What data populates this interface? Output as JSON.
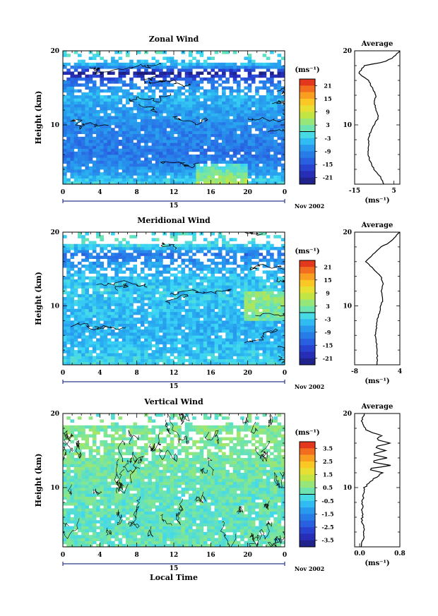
{
  "chart_data": [
    {
      "type": "heatmap",
      "title": "Zonal Wind",
      "xlabel": "",
      "ylabel": "Height (km)",
      "x_ticks": [
        "0",
        "4",
        "8",
        "12",
        "16",
        "20",
        "0"
      ],
      "x_range": [
        0,
        24
      ],
      "y_ticks": [
        "20",
        "10"
      ],
      "y_range": [
        2,
        20
      ],
      "date_label": "15",
      "month_label": "Nov 2002",
      "colorbar": {
        "unit": "(ms⁻¹)",
        "tick_labels": [
          "21",
          "15",
          "9",
          "3",
          "-3",
          "-9",
          "-15",
          "-21"
        ],
        "tick_values": [
          21,
          15,
          9,
          3,
          -3,
          -9,
          -15,
          -21
        ],
        "range": [
          -24,
          24
        ]
      },
      "field_profile": [
        {
          "h": 2,
          "v": -2
        },
        {
          "h": 4,
          "v": -8
        },
        {
          "h": 6,
          "v": -11
        },
        {
          "h": 8,
          "v": -10
        },
        {
          "h": 10,
          "v": -9
        },
        {
          "h": 12,
          "v": -7
        },
        {
          "h": 14,
          "v": -5
        },
        {
          "h": 16,
          "v": -12
        },
        {
          "h": 17,
          "v": -22
        },
        {
          "h": 18,
          "v": -6
        },
        {
          "h": 19,
          "v": -2
        },
        {
          "h": 20,
          "v": -1
        }
      ],
      "average": {
        "title": "Average",
        "xlabel": "(ms⁻¹)",
        "x_ticks": [
          "-15",
          "5"
        ],
        "x_range": [
          -15,
          8
        ],
        "y_ticks": [
          "20",
          "10"
        ],
        "profile": [
          {
            "h": 2,
            "v": 0
          },
          {
            "h": 3,
            "v": -2
          },
          {
            "h": 4,
            "v": -5
          },
          {
            "h": 5,
            "v": -7
          },
          {
            "h": 6,
            "v": -8
          },
          {
            "h": 7,
            "v": -8
          },
          {
            "h": 8,
            "v": -8
          },
          {
            "h": 9,
            "v": -7
          },
          {
            "h": 10,
            "v": -5
          },
          {
            "h": 11,
            "v": -3
          },
          {
            "h": 12,
            "v": -4
          },
          {
            "h": 13,
            "v": -5
          },
          {
            "h": 14,
            "v": -4
          },
          {
            "h": 15,
            "v": -6
          },
          {
            "h": 16,
            "v": -8
          },
          {
            "h": 17,
            "v": -13
          },
          {
            "h": 18,
            "v": -10
          },
          {
            "h": 18.5,
            "v": 0
          },
          {
            "h": 19,
            "v": 4
          },
          {
            "h": 19.5,
            "v": 6
          },
          {
            "h": 20,
            "v": 8
          }
        ]
      }
    },
    {
      "type": "heatmap",
      "title": "Meridional Wind",
      "xlabel": "",
      "ylabel": "Height (km)",
      "x_ticks": [
        "0",
        "4",
        "8",
        "12",
        "16",
        "20",
        "0"
      ],
      "x_range": [
        0,
        24
      ],
      "y_ticks": [
        "20",
        "10"
      ],
      "y_range": [
        2,
        20
      ],
      "date_label": "15",
      "month_label": "Nov 2002",
      "colorbar": {
        "unit": "(ms⁻¹)",
        "tick_labels": [
          "21",
          "15",
          "9",
          "3",
          "-3",
          "-9",
          "-15",
          "-21"
        ],
        "tick_values": [
          21,
          15,
          9,
          3,
          -3,
          -9,
          -15,
          -21
        ],
        "range": [
          -24,
          24
        ]
      },
      "field_profile": [
        {
          "h": 2,
          "v": -2
        },
        {
          "h": 4,
          "v": -4
        },
        {
          "h": 6,
          "v": -5
        },
        {
          "h": 8,
          "v": -5
        },
        {
          "h": 10,
          "v": -4
        },
        {
          "h": 12,
          "v": -3
        },
        {
          "h": 14,
          "v": -4
        },
        {
          "h": 16,
          "v": -8
        },
        {
          "h": 17,
          "v": -11
        },
        {
          "h": 18,
          "v": -3
        },
        {
          "h": 19,
          "v": -1
        },
        {
          "h": 20,
          "v": -1
        }
      ],
      "average": {
        "title": "Average",
        "xlabel": "(ms⁻¹)",
        "x_ticks": [
          "-8",
          "4"
        ],
        "x_range": [
          -8,
          4
        ],
        "y_ticks": [
          "20",
          "10"
        ],
        "profile": [
          {
            "h": 2,
            "v": -2
          },
          {
            "h": 4,
            "v": -2
          },
          {
            "h": 6,
            "v": -2.5
          },
          {
            "h": 8,
            "v": -2
          },
          {
            "h": 9,
            "v": -1.5
          },
          {
            "h": 10,
            "v": -1
          },
          {
            "h": 11,
            "v": -0.5
          },
          {
            "h": 12,
            "v": -1
          },
          {
            "h": 13,
            "v": -0.5
          },
          {
            "h": 14,
            "v": -1
          },
          {
            "h": 15,
            "v": -3
          },
          {
            "h": 16,
            "v": -5
          },
          {
            "h": 17,
            "v": -3
          },
          {
            "h": 18,
            "v": -1
          },
          {
            "h": 18.5,
            "v": 1
          },
          {
            "h": 19,
            "v": 2
          },
          {
            "h": 19.5,
            "v": 3
          },
          {
            "h": 20,
            "v": 4
          }
        ]
      }
    },
    {
      "type": "heatmap",
      "title": "Vertical Wind",
      "xlabel": "Local Time",
      "ylabel": "Height (km)",
      "x_ticks": [
        "0",
        "4",
        "8",
        "12",
        "16",
        "20",
        "0"
      ],
      "x_range": [
        0,
        24
      ],
      "y_ticks": [
        "20",
        "10"
      ],
      "y_range": [
        2,
        20
      ],
      "date_label": "15",
      "month_label": "Nov 2002",
      "colorbar": {
        "unit": "(ms⁻¹)",
        "tick_labels": [
          "3.5",
          "2.5",
          "1.5",
          "0.5",
          "-0.5",
          "-1.5",
          "-2.5",
          "-3.5"
        ],
        "tick_values": [
          3.5,
          2.5,
          1.5,
          0.5,
          -0.5,
          -1.5,
          -2.5,
          -3.5
        ],
        "range": [
          -4,
          4
        ]
      },
      "field_profile": [
        {
          "h": 2,
          "v": 0.2
        },
        {
          "h": 6,
          "v": 0.1
        },
        {
          "h": 10,
          "v": 0.2
        },
        {
          "h": 14,
          "v": 0.4
        },
        {
          "h": 17,
          "v": 0.5
        },
        {
          "h": 20,
          "v": 0.3
        }
      ],
      "average": {
        "title": "Average",
        "xlabel": "(ms⁻¹)",
        "x_ticks": [
          "0.0",
          "0.8"
        ],
        "x_range": [
          -0.1,
          0.8
        ],
        "y_ticks": [
          "20",
          "10"
        ],
        "profile": [
          {
            "h": 2,
            "v": 0.05
          },
          {
            "h": 4,
            "v": 0.08
          },
          {
            "h": 6,
            "v": 0.05
          },
          {
            "h": 8,
            "v": 0.05
          },
          {
            "h": 9,
            "v": 0.08
          },
          {
            "h": 10,
            "v": 0.1
          },
          {
            "h": 11,
            "v": 0.25
          },
          {
            "h": 12,
            "v": 0.45
          },
          {
            "h": 12.5,
            "v": 0.15
          },
          {
            "h": 13,
            "v": 0.6
          },
          {
            "h": 13.5,
            "v": 0.2
          },
          {
            "h": 14,
            "v": 0.55
          },
          {
            "h": 14.5,
            "v": 0.25
          },
          {
            "h": 15,
            "v": 0.5
          },
          {
            "h": 15.5,
            "v": 0.3
          },
          {
            "h": 16,
            "v": 0.6
          },
          {
            "h": 16.5,
            "v": 0.3
          },
          {
            "h": 17,
            "v": 0.45
          },
          {
            "h": 17.5,
            "v": 0.2
          },
          {
            "h": 18,
            "v": 0.1
          },
          {
            "h": 19,
            "v": 0.05
          },
          {
            "h": 20,
            "v": 0.08
          }
        ]
      }
    }
  ]
}
